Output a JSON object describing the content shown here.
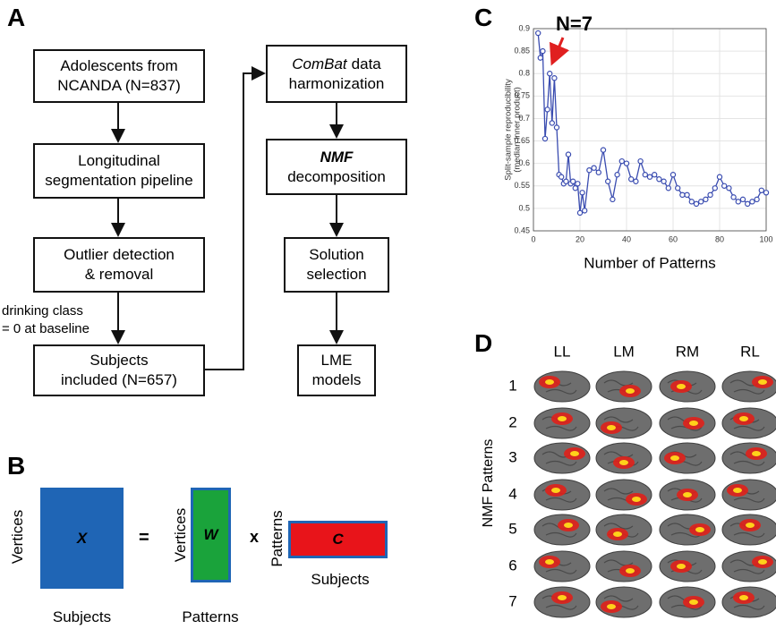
{
  "panel_labels": [
    "A",
    "B",
    "C",
    "D"
  ],
  "flowchart": {
    "nodes": [
      {
        "lines": [
          "Adolescents from",
          "NCANDA (N=837)"
        ]
      },
      {
        "lines": [
          "Longitudinal",
          "segmentation pipeline"
        ]
      },
      {
        "lines": [
          "Outlier detection",
          "& removal"
        ]
      },
      {
        "lines": [
          "Subjects",
          "included (N=657)"
        ]
      },
      {
        "lines": [
          [
            "ComBat",
            "data"
          ],
          "harmonization"
        ]
      },
      {
        "lines": [
          "NMF",
          "decomposition"
        ]
      },
      {
        "lines": [
          "Solution",
          "selection"
        ]
      },
      {
        "lines": [
          "LME",
          "models"
        ]
      }
    ],
    "edge_label": [
      "drinking class",
      "= 0 at baseline"
    ]
  },
  "matrix": {
    "x": "X",
    "w": "W",
    "c": "C",
    "equals": "=",
    "times": "x",
    "x_rows": "Vertices",
    "x_cols": "Subjects",
    "w_rows": "Vertices",
    "w_cols": "Patterns",
    "c_rows": "Patterns",
    "c_cols": "Subjects"
  },
  "chart_data": {
    "type": "line",
    "annotation": "N=7",
    "xlabel": "Number of Patterns",
    "ylabel": [
      "Split-sample reproducibility",
      "(median inner product)"
    ],
    "x": [
      2,
      3,
      4,
      5,
      6,
      7,
      8,
      9,
      10,
      11,
      12,
      13,
      14,
      15,
      16,
      17,
      18,
      19,
      20,
      21,
      22,
      24,
      26,
      28,
      30,
      32,
      34,
      36,
      38,
      40,
      42,
      44,
      46,
      48,
      50,
      52,
      54,
      56,
      58,
      60,
      62,
      64,
      66,
      68,
      70,
      72,
      74,
      76,
      78,
      80,
      82,
      84,
      86,
      88,
      90,
      92,
      94,
      96,
      98,
      100
    ],
    "values": [
      0.89,
      0.835,
      0.85,
      0.655,
      0.72,
      0.8,
      0.69,
      0.79,
      0.68,
      0.575,
      0.57,
      0.555,
      0.56,
      0.62,
      0.555,
      0.56,
      0.545,
      0.555,
      0.49,
      0.535,
      0.495,
      0.585,
      0.59,
      0.58,
      0.63,
      0.56,
      0.52,
      0.575,
      0.605,
      0.6,
      0.565,
      0.56,
      0.605,
      0.575,
      0.57,
      0.575,
      0.565,
      0.56,
      0.545,
      0.575,
      0.545,
      0.53,
      0.53,
      0.515,
      0.51,
      0.515,
      0.52,
      0.53,
      0.545,
      0.57,
      0.55,
      0.545,
      0.525,
      0.515,
      0.52,
      0.51,
      0.515,
      0.52,
      0.54,
      0.535
    ],
    "color": "#3a4cb0",
    "xlim": [
      0,
      100
    ],
    "xticks": [
      0,
      20,
      40,
      60,
      80,
      100
    ],
    "ylim": [
      0.45,
      0.9
    ],
    "yticks": [
      0.45,
      0.5,
      0.55,
      0.6,
      0.65,
      0.7,
      0.75,
      0.8,
      0.85,
      0.9
    ],
    "grid": true
  },
  "nmf": {
    "title": "NMF Patterns",
    "columns": [
      "LL",
      "LM",
      "RM",
      "RL"
    ],
    "rows": [
      "1",
      "2",
      "3",
      "4",
      "5",
      "6",
      "7"
    ]
  }
}
